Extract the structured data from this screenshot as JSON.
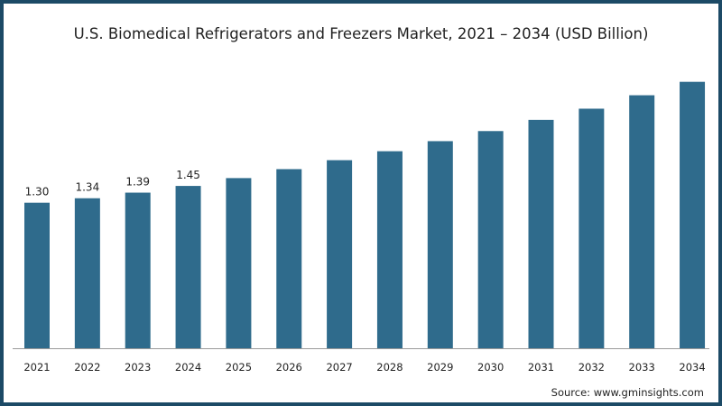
{
  "chart_data": {
    "type": "bar",
    "title": "U.S. Biomedical Refrigerators and Freezers Market, 2021 – 2034 (USD Billion)",
    "categories": [
      "2021",
      "2022",
      "2023",
      "2024",
      "2025",
      "2026",
      "2027",
      "2028",
      "2029",
      "2030",
      "2031",
      "2032",
      "2033",
      "2034"
    ],
    "values": [
      1.3,
      1.34,
      1.39,
      1.45,
      1.52,
      1.6,
      1.68,
      1.76,
      1.85,
      1.94,
      2.04,
      2.14,
      2.26,
      2.38
    ],
    "data_labels": [
      "1.30",
      "1.34",
      "1.39",
      "1.45",
      "",
      "",
      "",
      "",
      "",
      "",
      "",
      "",
      "",
      ""
    ],
    "xlabel": "",
    "ylabel": "",
    "ylim": [
      0,
      2.45
    ],
    "grid": false,
    "bar_color": "#2f6b8c"
  },
  "source": "Source: www.gminsights.com",
  "colors": {
    "frame": "#1c4a66",
    "text": "#222222"
  }
}
